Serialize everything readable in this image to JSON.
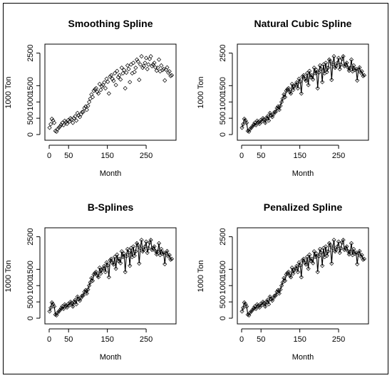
{
  "chart_data": [
    {
      "panel": "p0",
      "type": "scatter",
      "title": "Smoothing Spline",
      "xlabel": "Month",
      "ylabel": "1000 Ton",
      "xlim": [
        0,
        316
      ],
      "ylim": [
        0,
        2600
      ],
      "xticks": [
        "0",
        "50",
        "150",
        "250"
      ],
      "yticks": [
        "0",
        "500",
        "1000",
        "1500",
        "2500"
      ],
      "connect": false
    },
    {
      "panel": "p1",
      "type": "line",
      "title": "Natural Cubic Spline",
      "xlabel": "Month",
      "ylabel": "1000 Ton",
      "xlim": [
        0,
        316
      ],
      "ylim": [
        0,
        2600
      ],
      "xticks": [
        "0",
        "50",
        "150",
        "250"
      ],
      "yticks": [
        "0",
        "500",
        "1000",
        "1500",
        "2500"
      ],
      "connect": true
    },
    {
      "panel": "p2",
      "type": "line",
      "title": "B-Splines",
      "xlabel": "Month",
      "ylabel": "1000 Ton",
      "xlim": [
        0,
        316
      ],
      "ylim": [
        0,
        2600
      ],
      "xticks": [
        "0",
        "50",
        "150",
        "250"
      ],
      "yticks": [
        "0",
        "500",
        "1000",
        "1500",
        "2500"
      ],
      "connect": true
    },
    {
      "panel": "p3",
      "type": "line",
      "title": "Penalized Spline",
      "xlabel": "Month",
      "ylabel": "1000 Ton",
      "xlim": [
        0,
        316
      ],
      "ylim": [
        0,
        2600
      ],
      "xticks": [
        "0",
        "50",
        "150",
        "250"
      ],
      "yticks": [
        "0",
        "500",
        "1000",
        "1500",
        "2500"
      ],
      "connect": true
    }
  ],
  "series": {
    "x_start": 1,
    "x_step": 3,
    "values": [
      210,
      320,
      480,
      430,
      360,
      110,
      90,
      170,
      210,
      250,
      300,
      360,
      290,
      420,
      380,
      330,
      440,
      400,
      500,
      470,
      360,
      500,
      560,
      430,
      660,
      590,
      540,
      620,
      690,
      700,
      810,
      860,
      760,
      880,
      1000,
      1100,
      1230,
      1150,
      1340,
      1390,
      1420,
      1310,
      1260,
      1550,
      1370,
      1480,
      1520,
      1600,
      1420,
      1710,
      1620,
      1260,
      1780,
      1820,
      1710,
      1650,
      1880,
      1520,
      1950,
      1760,
      1820,
      1690,
      2050,
      1880,
      1980,
      1420,
      1900,
      2120,
      2010,
      1610,
      2150,
      1880,
      2200,
      1920,
      2050,
      2300,
      2240,
      1680,
      2150,
      2400,
      2050,
      2100,
      2200,
      2350,
      2010,
      2150,
      2320,
      2400,
      2100,
      2150,
      2200,
      2060,
      1960,
      2050,
      2300,
      1940,
      2120,
      1980,
      2010,
      1660,
      1990,
      2060,
      1900,
      1940,
      1800,
      1820
    ]
  }
}
